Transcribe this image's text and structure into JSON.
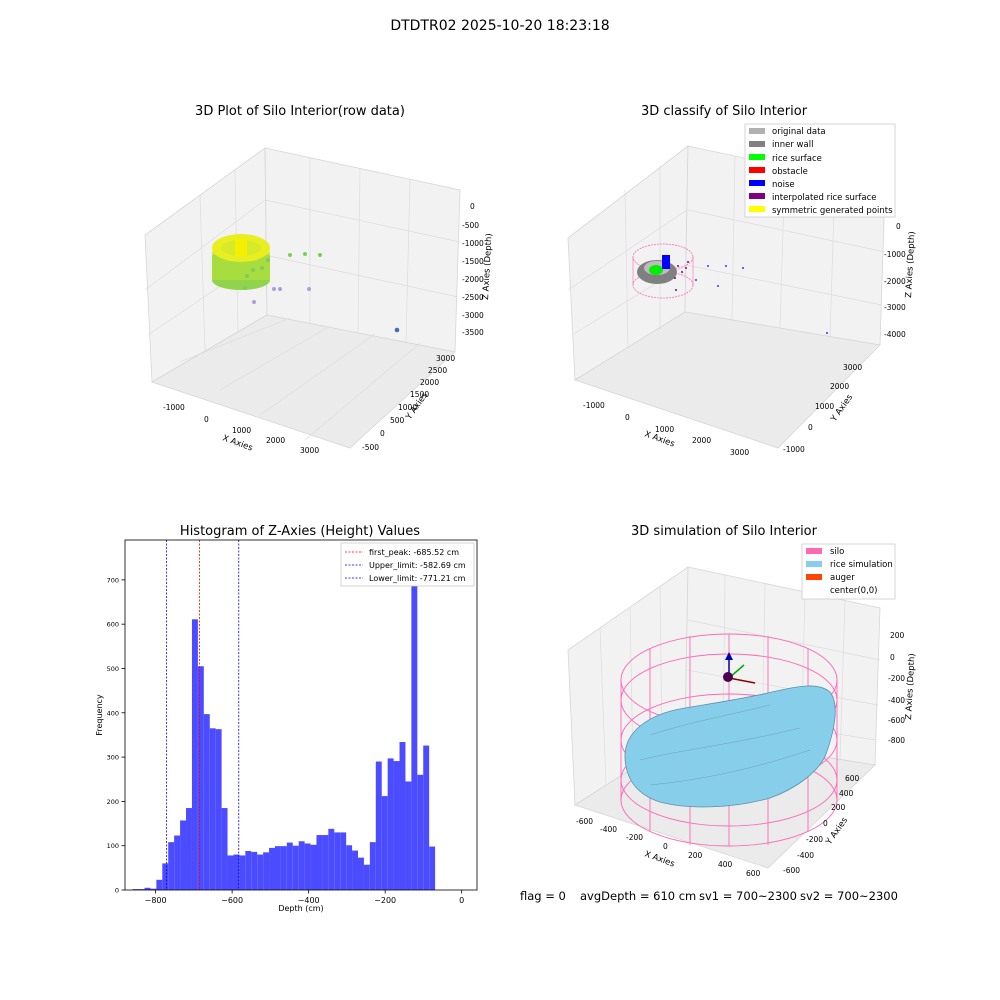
{
  "figure": {
    "suptitle": "DTDTR02 2025-10-20 18:23:18"
  },
  "panels": {
    "raw": {
      "title": "3D Plot of Silo Interior(row data)",
      "xlabel": "X Axies",
      "ylabel": "Y Axies",
      "zlabel": "Z Axies (Depth)",
      "xticks": [
        "-1000",
        "0",
        "1000",
        "2000",
        "3000"
      ],
      "yticks": [
        "-500",
        "0",
        "500",
        "1000",
        "1500",
        "2000",
        "2500",
        "3000"
      ],
      "zticks": [
        "0",
        "-500",
        "-1000",
        "-1500",
        "-2000",
        "-2500",
        "-3000",
        "-3500"
      ]
    },
    "classify": {
      "title": "3D classify of Silo Interior",
      "xlabel": "X Axies",
      "ylabel": "Y Axies",
      "zlabel": "Z Axies (Depth)",
      "xticks": [
        "-1000",
        "0",
        "1000",
        "2000",
        "3000"
      ],
      "yticks": [
        "-1000",
        "0",
        "1000",
        "2000",
        "3000"
      ],
      "zticks": [
        "0",
        "-1000",
        "-2000",
        "-3000",
        "-4000"
      ],
      "legend": [
        {
          "label": "original data",
          "color": "#b0b0b0"
        },
        {
          "label": "inner wall",
          "color": "#808080"
        },
        {
          "label": "rice surface",
          "color": "#00ff00"
        },
        {
          "label": "obstacle",
          "color": "#ff0000"
        },
        {
          "label": "noise",
          "color": "#0000ff"
        },
        {
          "label": "interpolated rice surface",
          "color": "#800080"
        },
        {
          "label": "symmetric generated points",
          "color": "#ffff00"
        }
      ]
    },
    "simulation": {
      "title": "3D simulation of Silo Interior",
      "xlabel": "X Axies",
      "ylabel": "Y Axies",
      "zlabel": "Z Axies (Depth)",
      "xticks": [
        "-600",
        "-400",
        "-200",
        "0",
        "200",
        "400",
        "600"
      ],
      "yticks": [
        "-600",
        "-400",
        "-200",
        "0",
        "200",
        "400",
        "600"
      ],
      "zticks": [
        "200",
        "0",
        "-200",
        "-400",
        "-600",
        "-800"
      ],
      "legend": [
        {
          "label": "silo",
          "color": "#ff69b4"
        },
        {
          "label": "rice simulation",
          "color": "#87ceeb"
        },
        {
          "label": "auger",
          "color": "#ff4500"
        },
        {
          "label": "center(0,0)",
          "color": ""
        }
      ]
    }
  },
  "status": {
    "flag": "flag = 0",
    "avg_depth": "avgDepth = 610 cm",
    "sv1": "sv1 = 700~2300",
    "sv2": "sv2 = 700~2300"
  },
  "chart_data": [
    {
      "type": "histogram",
      "title": "Histogram of Z-Axies (Height) Values",
      "xlabel": "Depth (cm)",
      "ylabel": "Frequency",
      "xlim": [
        -880,
        40
      ],
      "ylim": [
        0,
        790
      ],
      "xticks": [
        -800,
        -600,
        -400,
        -200,
        0
      ],
      "yticks": [
        0,
        100,
        200,
        300,
        400,
        500,
        600,
        700
      ],
      "bin_start": -860,
      "bin_width": 15.5,
      "values": [
        2,
        2,
        5,
        3,
        23,
        60,
        108,
        123,
        157,
        185,
        611,
        505,
        397,
        365,
        363,
        185,
        78,
        80,
        78,
        88,
        86,
        80,
        85,
        95,
        99,
        99,
        107,
        100,
        110,
        105,
        102,
        124,
        124,
        138,
        130,
        130,
        101,
        89,
        73,
        57,
        108,
        290,
        212,
        297,
        291,
        334,
        245,
        757,
        260,
        326,
        98
      ],
      "bar_color": "#4b4bff",
      "vlines": [
        {
          "label": "first_peak: -685.52 cm",
          "x": -685.52,
          "color": "#ff0000"
        },
        {
          "label": "Upper_limit: -582.69 cm",
          "x": -582.69,
          "color": "#0000ff"
        },
        {
          "label": "Lower_limit: -771.21 cm",
          "x": -771.21,
          "color": "#0000ff"
        }
      ],
      "legend_position": "top-right"
    }
  ]
}
